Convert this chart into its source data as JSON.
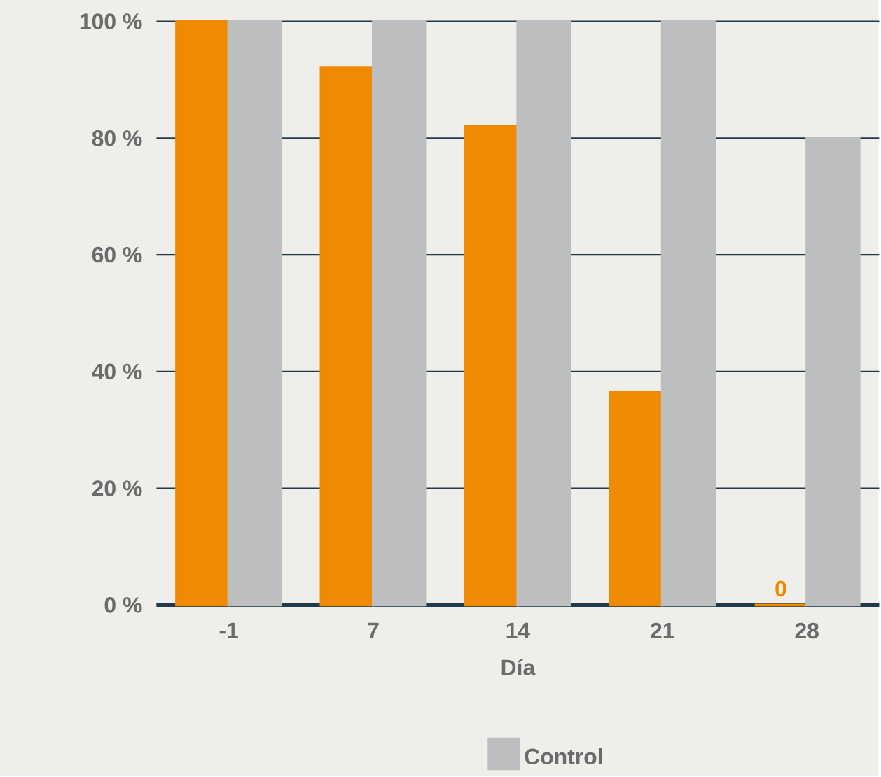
{
  "chart_data": {
    "type": "bar",
    "xlabel": "Día",
    "categories": [
      "-1",
      "7",
      "14",
      "21",
      "28"
    ],
    "series": [
      {
        "color": "#f08a00",
        "values": [
          100,
          92,
          82,
          36.5,
          0
        ],
        "value_labels": [
          null,
          null,
          null,
          null,
          "0"
        ]
      },
      {
        "name": "Control",
        "color": "#bdbec0",
        "values": [
          100,
          100,
          100,
          100,
          80
        ]
      }
    ],
    "ylim": [
      0,
      100
    ],
    "yticks": [
      {
        "value": 0,
        "label": "0 %"
      },
      {
        "value": 20,
        "label": "20 %"
      },
      {
        "value": 40,
        "label": "40 %"
      },
      {
        "value": 60,
        "label": "60 %"
      },
      {
        "value": 80,
        "label": "80 %"
      },
      {
        "value": 100,
        "label": "100 %"
      }
    ],
    "grid": "y",
    "legend": "bottom"
  }
}
